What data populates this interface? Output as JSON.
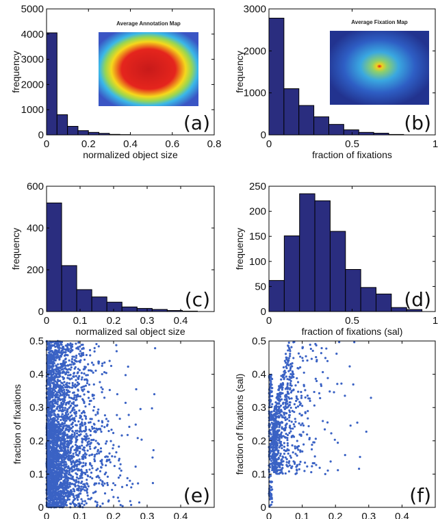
{
  "colors": {
    "bar": "#2a2d7f",
    "bar_edge": "#000000",
    "scatter": "#3a62c4",
    "axis": "#000000"
  },
  "chart_data": [
    {
      "id": "a",
      "type": "bar",
      "panel_label": "(a)",
      "xlabel": "normalized object size",
      "ylabel": "frequency",
      "xlim": [
        0,
        0.8
      ],
      "ylim": [
        0,
        5000
      ],
      "xticks": [
        0,
        0.2,
        0.4,
        0.6,
        0.8
      ],
      "yticks": [
        0,
        1000,
        2000,
        3000,
        4000,
        5000
      ],
      "bin_width": 0.05,
      "bin_start": 0,
      "values": [
        4050,
        800,
        340,
        170,
        100,
        60,
        20,
        10
      ],
      "inset": {
        "title": "Average Annotation Map",
        "kind": "annotation"
      }
    },
    {
      "id": "b",
      "type": "bar",
      "panel_label": "(b)",
      "xlabel": "fraction of fixations",
      "ylabel": "frequency",
      "xlim": [
        0,
        1
      ],
      "ylim": [
        0,
        3000
      ],
      "xticks": [
        0,
        0.5,
        1
      ],
      "yticks": [
        0,
        1000,
        2000,
        3000
      ],
      "bin_width": 0.09,
      "bin_start": 0,
      "values": [
        2780,
        1100,
        700,
        430,
        250,
        120,
        60,
        40,
        10
      ],
      "inset": {
        "title": "Average Fixation Map",
        "kind": "fixation"
      }
    },
    {
      "id": "c",
      "type": "bar",
      "panel_label": "(c)",
      "xlabel": "normalized sal object size",
      "ylabel": "frequency",
      "xlim": [
        0,
        0.5
      ],
      "ylim": [
        0,
        600
      ],
      "xticks": [
        0,
        0.1,
        0.2,
        0.3,
        0.4
      ],
      "yticks": [
        0,
        200,
        400,
        600
      ],
      "bin_width": 0.045,
      "bin_start": 0,
      "values": [
        520,
        220,
        105,
        70,
        45,
        22,
        15,
        10,
        5,
        2
      ]
    },
    {
      "id": "d",
      "type": "bar",
      "panel_label": "(d)",
      "xlabel": "fraction of fixations (sal)",
      "ylabel": "frequency",
      "xlim": [
        0,
        1
      ],
      "ylim": [
        0,
        250
      ],
      "xticks": [
        0,
        0.5,
        1
      ],
      "yticks": [
        0,
        50,
        100,
        150,
        200,
        250
      ],
      "bin_width": 0.092,
      "bin_start": 0,
      "values": [
        62,
        151,
        235,
        221,
        160,
        84,
        48,
        35,
        8,
        4
      ]
    },
    {
      "id": "e",
      "type": "scatter",
      "panel_label": "(e)",
      "xlabel": "normalized object size",
      "ylabel": "fraction of fixations",
      "xlim": [
        0,
        0.5
      ],
      "ylim": [
        0,
        0.5
      ],
      "xticks": [
        0,
        0.1,
        0.2,
        0.3,
        0.4
      ],
      "yticks": [
        0,
        0.1,
        0.2,
        0.3,
        0.4,
        0.5
      ],
      "n_points": 3000,
      "x_mean": 0.05,
      "seed": 7
    },
    {
      "id": "f",
      "type": "scatter",
      "panel_label": "(f)",
      "xlabel": "normalized sal object size",
      "ylabel": "fraction of fixations (sal)",
      "xlim": [
        0,
        0.5
      ],
      "ylim": [
        0,
        0.5
      ],
      "xticks": [
        0,
        0.1,
        0.2,
        0.3,
        0.4
      ],
      "yticks": [
        0,
        0.1,
        0.2,
        0.3,
        0.4,
        0.5
      ],
      "n_points": 900,
      "x_mean": 0.045,
      "seed": 11
    }
  ]
}
